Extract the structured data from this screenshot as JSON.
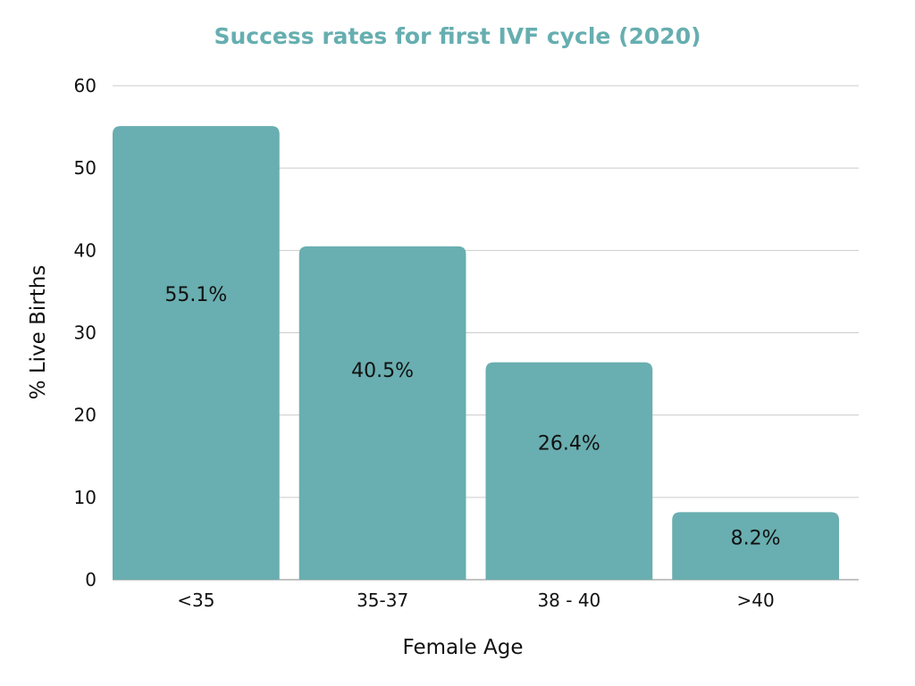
{
  "colors": {
    "title": "#66aeb0",
    "bar": "#69aeb0",
    "grid": "#cccccc",
    "baseline": "#888888",
    "text": "#111111"
  },
  "chart_data": {
    "type": "bar",
    "title": "Success rates for first IVF cycle (2020)",
    "xlabel": "Female Age",
    "ylabel": "% Live Births",
    "categories": [
      "<35",
      "35-37",
      "38 - 40",
      ">40"
    ],
    "values": [
      55.1,
      40.5,
      26.4,
      8.2
    ],
    "data_labels": [
      "55.1%",
      "40.5%",
      "26.4%",
      "8.2%"
    ],
    "ylim": [
      0,
      60
    ],
    "yticks": [
      0,
      10,
      20,
      30,
      40,
      50,
      60
    ],
    "grid": true,
    "legend": "none"
  }
}
